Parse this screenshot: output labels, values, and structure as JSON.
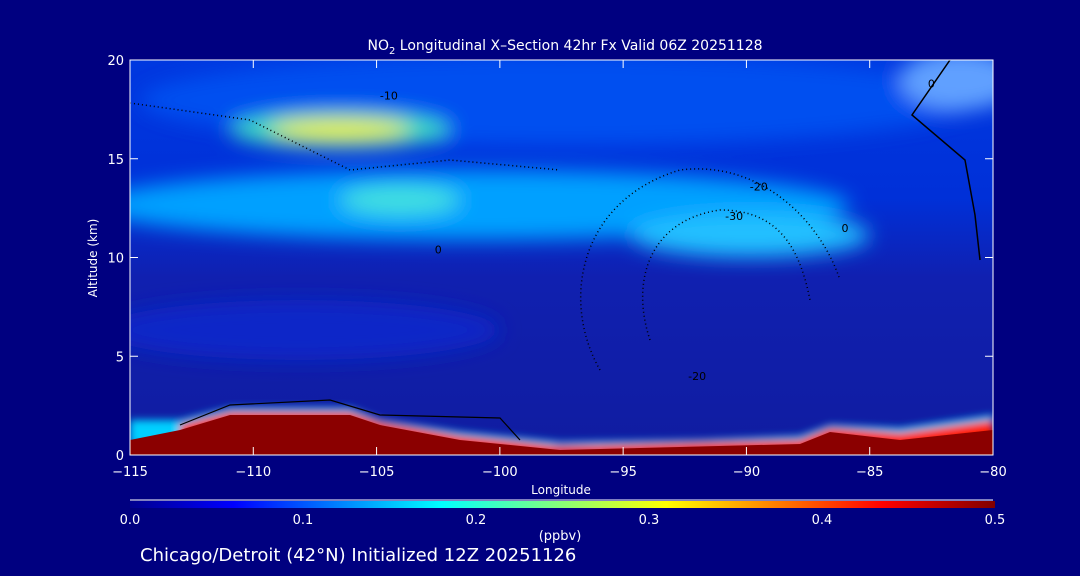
{
  "chart_data": {
    "type": "heatmap",
    "title_prefix": "NO",
    "title_sub": "2",
    "title_rest": " Longitudinal X–Section 42hr  Fx Valid 06Z 20251128",
    "xlabel": "Longitude",
    "ylabel": "Altitude (km)",
    "xlim": [
      -115,
      -80
    ],
    "ylim": [
      0,
      20
    ],
    "xticks": [
      -115,
      -110,
      -105,
      -100,
      -95,
      -90,
      -85,
      -80
    ],
    "xtick_labels": [
      "−115",
      "−110",
      "−105",
      "−100",
      "−95",
      "−90",
      "−85",
      "−80"
    ],
    "yticks": [
      0,
      5,
      10,
      15,
      20
    ],
    "ytick_labels": [
      "0",
      "5",
      "10",
      "15",
      "20"
    ],
    "colorbar": {
      "label": "(ppbv)",
      "range": [
        0.0,
        0.5
      ],
      "ticks": [
        "0.0",
        "0.1",
        "0.2",
        "0.3",
        "0.4",
        "0.5"
      ],
      "colors": [
        "#00008f",
        "#0000ff",
        "#00ffff",
        "#ffff00",
        "#ff0000",
        "#800000"
      ]
    },
    "features": [
      {
        "name": "upper-maximum",
        "lon": [
          -111,
          -104
        ],
        "alt": 16.5,
        "value": 0.32
      },
      {
        "name": "tropopause-band",
        "lon": [
          -115,
          -86
        ],
        "alt": 12.5,
        "value": 0.2
      },
      {
        "name": "surface-west",
        "lon": [
          -115,
          -99
        ],
        "alt": 2,
        "value": 0.5
      },
      {
        "name": "surface-east",
        "lon": [
          -88,
          -80
        ],
        "alt": 1.3,
        "value": 0.5
      }
    ],
    "contour_labels": [
      {
        "text": "-10",
        "lon": -104.5,
        "alt": 18
      },
      {
        "text": "-20",
        "lon": -89.5,
        "alt": 13.4
      },
      {
        "text": "-30",
        "lon": -90.5,
        "alt": 11.9
      },
      {
        "text": "-20",
        "lon": -92,
        "alt": 3.8
      },
      {
        "text": "0",
        "lon": -102.5,
        "alt": 10.2
      },
      {
        "text": "0",
        "lon": -86,
        "alt": 11.3
      },
      {
        "text": "0",
        "lon": -82.5,
        "alt": 18.6
      }
    ]
  },
  "footer": "Chicago/Detroit (42°N) Initialized 12Z 20251126"
}
